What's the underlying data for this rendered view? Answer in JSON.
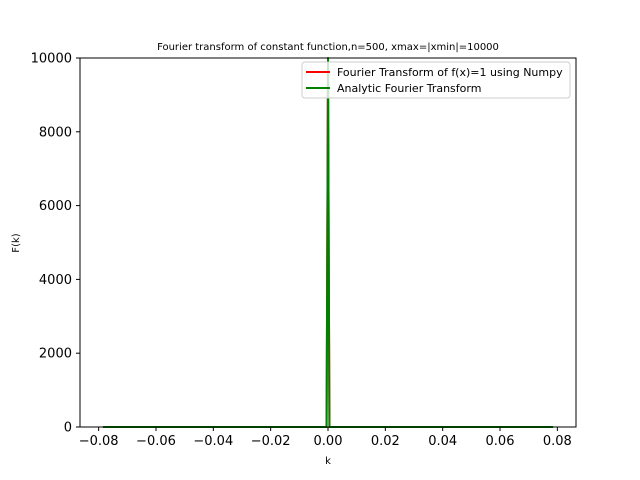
{
  "chart_data": {
    "type": "line",
    "title": "Fourier transform of constant function,n=500, xmax=|xmin|=10000",
    "xlabel": "k",
    "ylabel": "F(k)",
    "xlim": [
      -0.0865,
      0.0865
    ],
    "ylim": [
      0,
      10000
    ],
    "xticks": [
      -0.08,
      -0.06,
      -0.04,
      -0.02,
      0.0,
      0.02,
      0.04,
      0.06,
      0.08
    ],
    "xtick_labels": [
      "−0.08",
      "−0.06",
      "−0.04",
      "−0.02",
      "0.00",
      "0.02",
      "0.04",
      "0.06",
      "0.08"
    ],
    "yticks": [
      0,
      2000,
      4000,
      6000,
      8000,
      10000
    ],
    "ytick_labels": [
      "0",
      "2000",
      "4000",
      "6000",
      "8000",
      "10000"
    ],
    "grid": false,
    "legend_position": "upper right",
    "series": [
      {
        "name": "Fourier Transform of f(x)=1 using Numpy",
        "color": "#ff0000",
        "x": [
          -0.0785,
          -0.0005,
          0.0,
          0.0005,
          0.0785
        ],
        "y": [
          0,
          0,
          10000,
          0,
          0
        ]
      },
      {
        "name": "Analytic Fourier Transform",
        "color": "#008000",
        "x": [
          -0.0785,
          -0.0005,
          0.0,
          0.0005,
          0.0785
        ],
        "y": [
          0,
          0,
          10000,
          0,
          0
        ]
      }
    ]
  }
}
